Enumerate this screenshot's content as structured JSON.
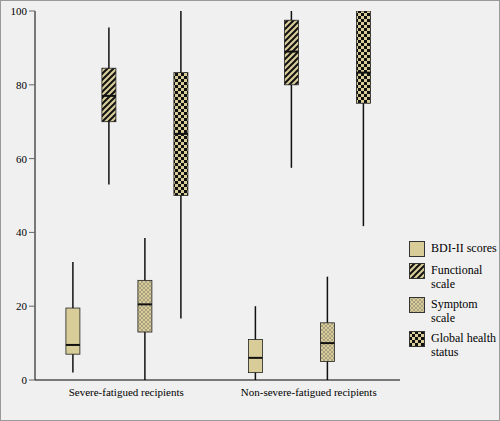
{
  "chart_data": {
    "type": "box",
    "categories": [
      "Severe-fatigued recipients",
      "Non-severe-fatigued recipients"
    ],
    "series": [
      {
        "name": "BDI-II scores",
        "color": "#d8cc98",
        "marker": "solid",
        "min": [
          2,
          0
        ],
        "q1": [
          7,
          2
        ],
        "median": [
          9.5,
          6
        ],
        "q3": [
          19.5,
          11
        ],
        "max": [
          32,
          20
        ]
      },
      {
        "name": "Functional scale",
        "color": "#d8cc98",
        "marker": "hatch",
        "min": [
          53,
          57.5
        ],
        "q1": [
          70,
          80
        ],
        "median": [
          77,
          89
        ],
        "q3": [
          84.5,
          97.5
        ],
        "max": [
          95.5,
          100
        ]
      },
      {
        "name": "Symptom scale",
        "color": "#d8cc98",
        "marker": "dots",
        "min": [
          0,
          0
        ],
        "q1": [
          13,
          5
        ],
        "median": [
          20.5,
          10
        ],
        "q3": [
          27,
          15.5
        ],
        "max": [
          38.5,
          28
        ]
      },
      {
        "name": "Global health status",
        "color": "#d8cc98",
        "marker": "checker",
        "min": [
          16.7,
          41.7
        ],
        "q1": [
          50,
          75
        ],
        "median": [
          66.7,
          83.3
        ],
        "q3": [
          83.3,
          100
        ],
        "max": [
          100,
          100
        ]
      }
    ],
    "ylim": [
      0,
      100
    ],
    "yticks": [
      0,
      20,
      40,
      60,
      80,
      100
    ],
    "grid": false,
    "legend": "right"
  }
}
